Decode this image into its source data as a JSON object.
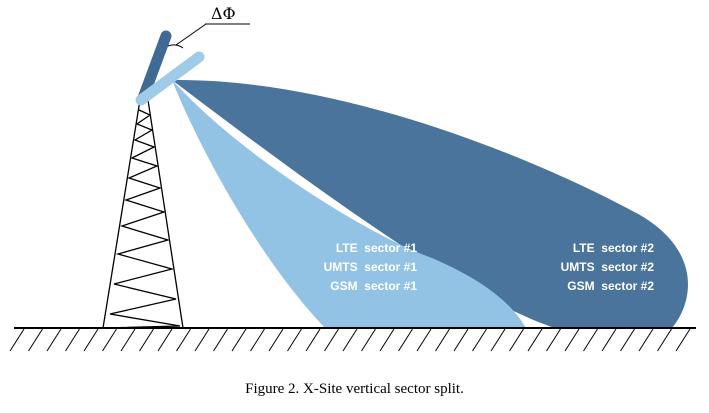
{
  "diagram": {
    "angle_label": "ΔΦ",
    "sector1": {
      "lines": [
        "LTE  sector #1",
        "UMTS  sector #1",
        "GSM  sector #1"
      ]
    },
    "sector2": {
      "lines": [
        "LTE  sector #2",
        "UMTS  sector #2",
        "GSM  sector #2"
      ]
    },
    "colors": {
      "sector1": "#92c3e4",
      "sector2": "#4b749c",
      "antenna_upper": "#3f6a94",
      "antenna_lower": "#9fcbe9",
      "tower": "#000000",
      "ground": "#000000"
    }
  },
  "caption": "Figure 2. X-Site vertical sector split."
}
